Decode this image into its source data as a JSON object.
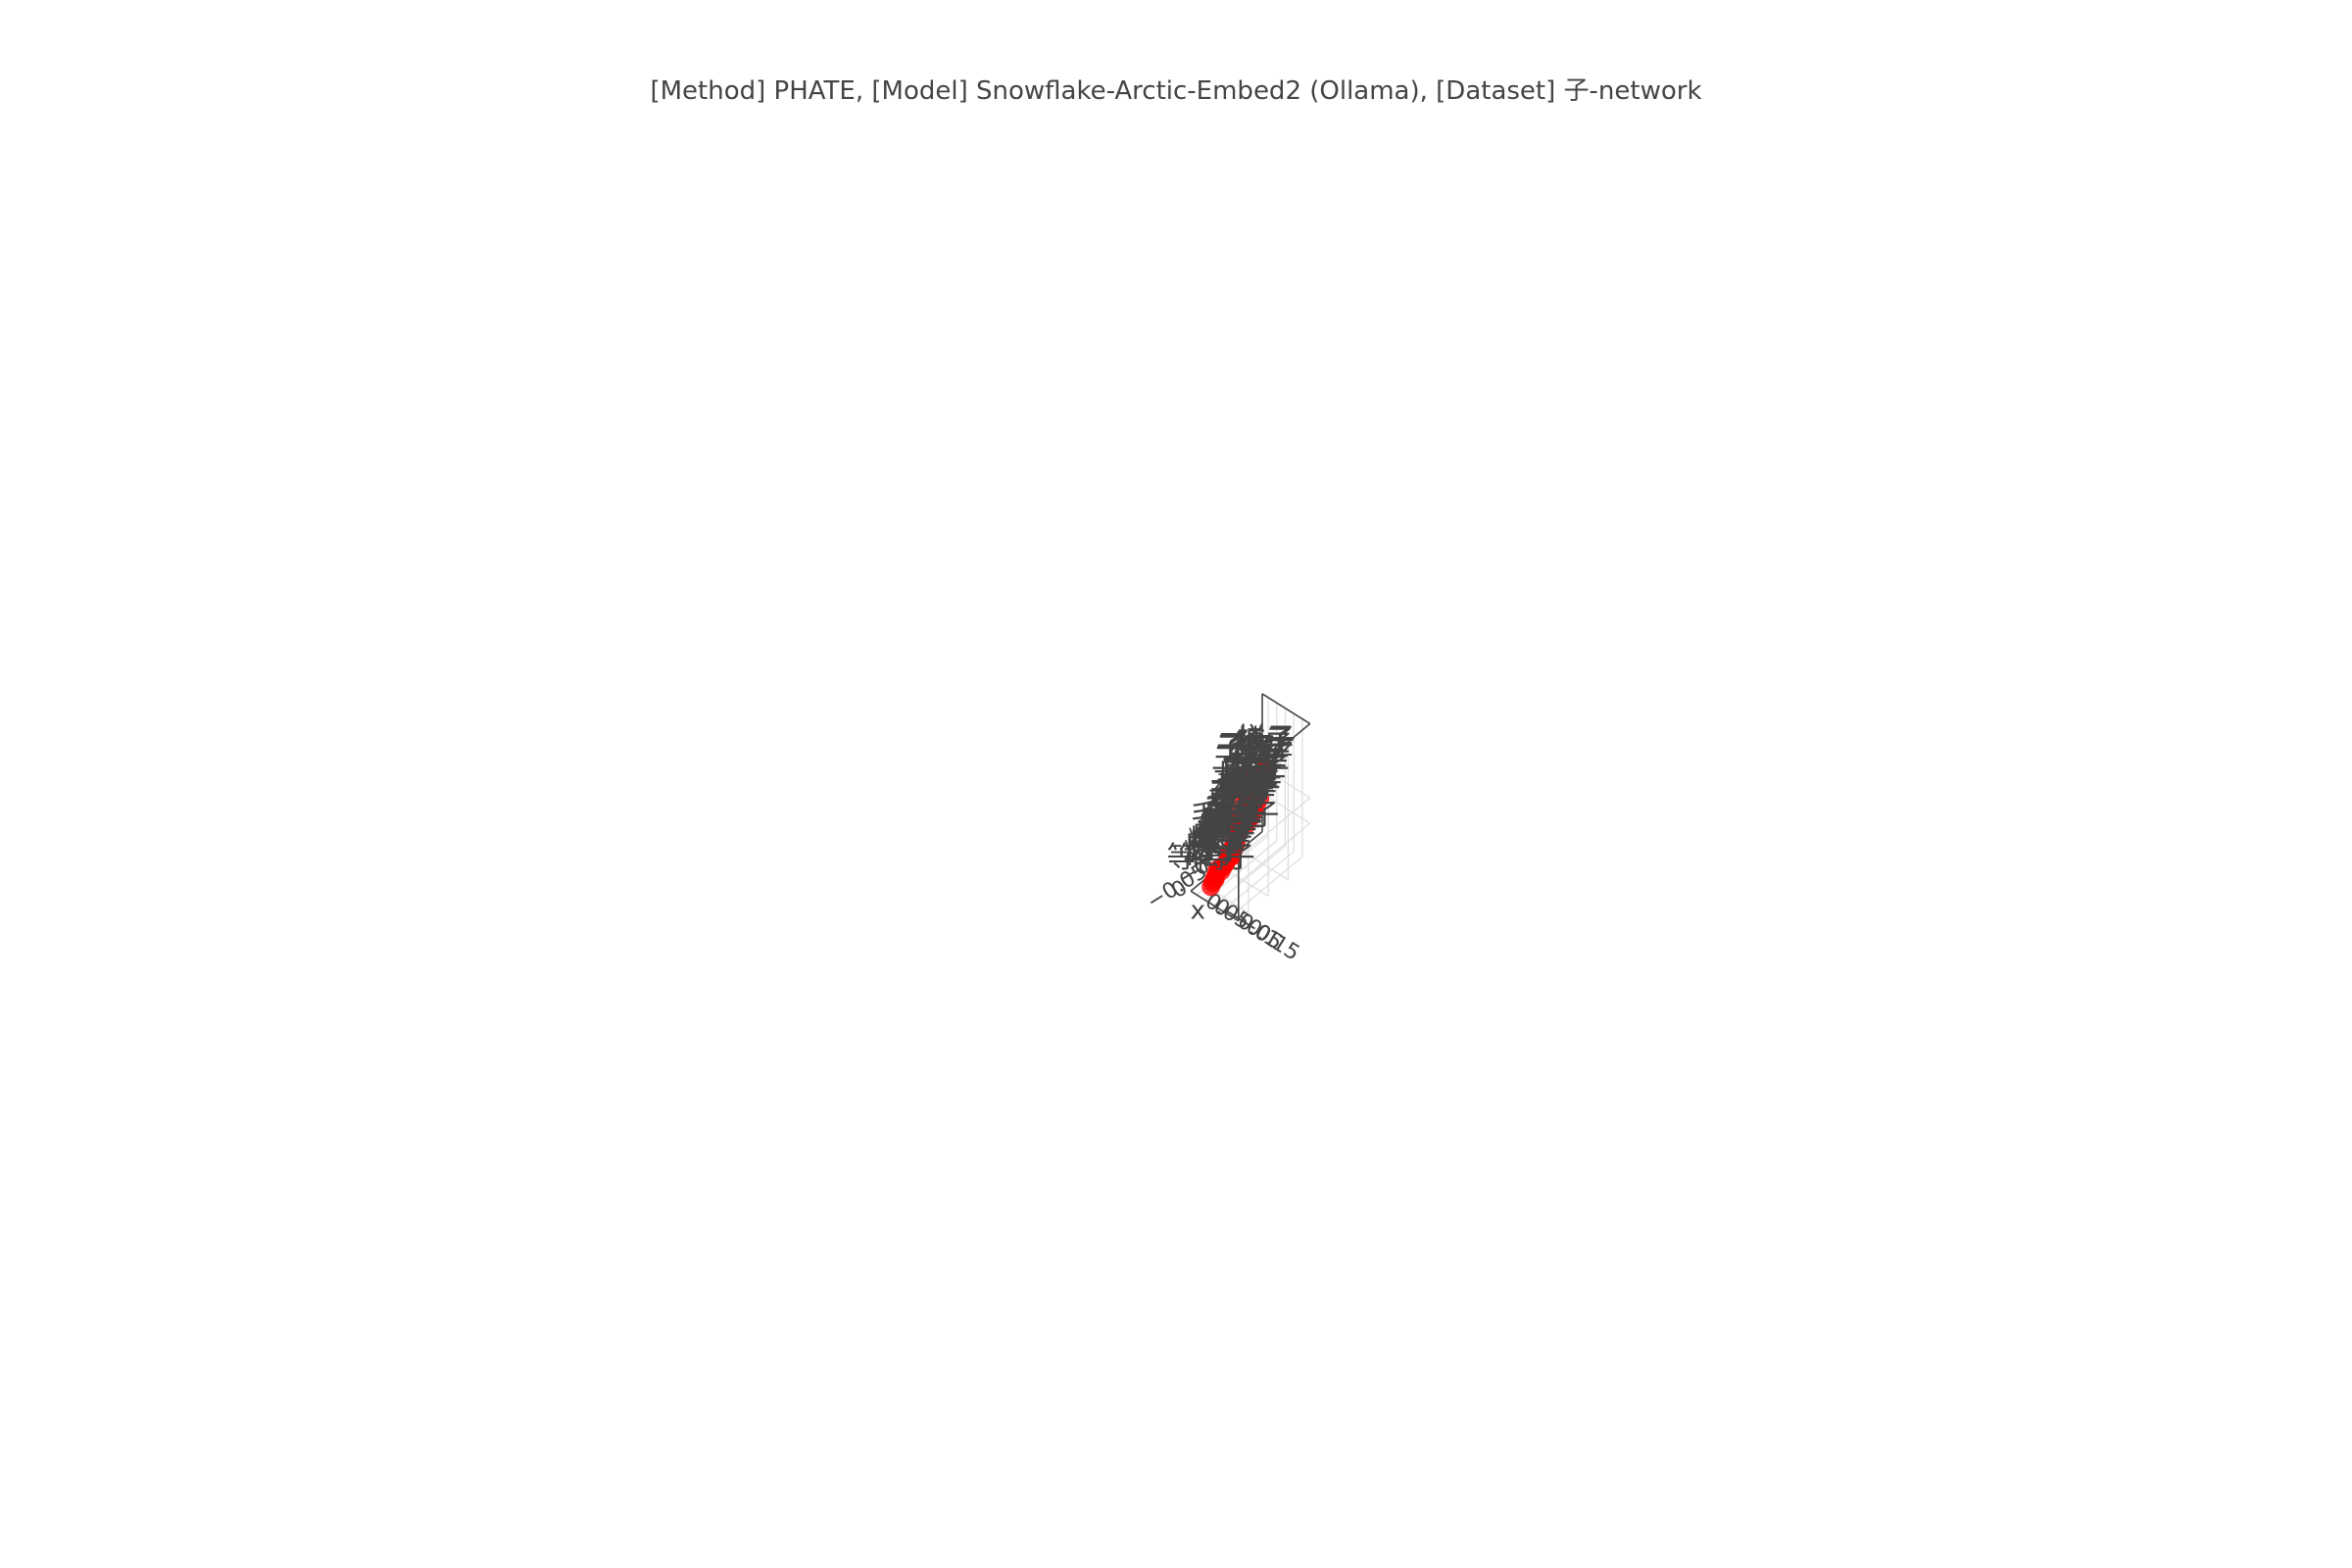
{
  "chart_data": {
    "type": "scatter3d",
    "title": "[Method] PHATE, [Model] Snowflake-Arctic-Embed2 (Ollama), [Dataset] 子-network",
    "axes": {
      "x": {
        "title": "x",
        "ticks": [
          "−0.15",
          "−0.1",
          "−0.05",
          "0",
          "0.05"
        ]
      },
      "y": {
        "title": "y",
        "ticks": [
          "−0.1",
          "−0.05",
          "0"
        ]
      },
      "z": {
        "title": "z",
        "ticks": [
          "0",
          "−0.05"
        ]
      }
    },
    "grid": true,
    "marker_color": "#ff0000",
    "text_color": "#444444",
    "points": [
      {
        "label": "子时",
        "x": -0.15,
        "y": 0.0,
        "z": 0.09
      },
      {
        "label": "子孙",
        "x": -0.145,
        "y": 0.0,
        "z": 0.06
      },
      {
        "label": "孙子",
        "x": -0.14,
        "y": 0.0,
        "z": 0.04
      },
      {
        "label": "辈子",
        "x": -0.11,
        "y": -0.03,
        "z": 0.04
      },
      {
        "label": "男子",
        "x": -0.125,
        "y": 0.0,
        "z": 0.02
      },
      {
        "label": "女子",
        "x": -0.12,
        "y": 0.0,
        "z": 0.015
      },
      {
        "label": "毛子",
        "x": -0.11,
        "y": 0.0,
        "z": 0.005
      },
      {
        "label": "虫子",
        "x": -0.16,
        "y": 0.01,
        "z": 0.03
      },
      {
        "label": "妻子",
        "x": -0.15,
        "y": 0.01,
        "z": 0.03
      },
      {
        "label": "妹子",
        "x": -0.17,
        "y": 0.02,
        "z": 0.02
      },
      {
        "label": "房子",
        "x": -0.175,
        "y": 0.03,
        "z": 0.01
      },
      {
        "label": "瘦子",
        "x": -0.15,
        "y": 0.02,
        "z": 0.0
      },
      {
        "label": "墨子",
        "x": -0.17,
        "y": 0.03,
        "z": 0.0
      },
      {
        "label": "傻子",
        "x": -0.18,
        "y": 0.04,
        "z": 0.02
      },
      {
        "label": "胖子",
        "x": -0.185,
        "y": 0.04,
        "z": 0.02
      },
      {
        "label": "甲子",
        "x": -0.05,
        "y": -0.06,
        "z": 0.02
      },
      {
        "label": "日子",
        "x": -0.06,
        "y": -0.05,
        "z": 0.01
      },
      {
        "label": "棋子",
        "x": -0.07,
        "y": -0.045,
        "z": 0.005
      },
      {
        "label": "骰子",
        "x": -0.03,
        "y": -0.1,
        "z": 0.0
      },
      {
        "label": "脖子",
        "x": -0.03,
        "y": -0.08,
        "z": -0.005
      },
      {
        "label": "鼻子",
        "x": -0.035,
        "y": -0.07,
        "z": -0.01
      },
      {
        "label": "面子",
        "x": -0.04,
        "y": -0.065,
        "z": -0.01
      },
      {
        "label": "胡子",
        "x": -0.05,
        "y": -0.06,
        "z": -0.015
      },
      {
        "label": "脑子",
        "x": -0.03,
        "y": -0.075,
        "z": -0.02
      },
      {
        "label": "嗓子",
        "x": -0.025,
        "y": -0.08,
        "z": -0.025
      },
      {
        "label": "曲子",
        "x": -0.01,
        "y": -0.1,
        "z": -0.02
      },
      {
        "label": "调子",
        "x": -0.01,
        "y": -0.09,
        "z": -0.025
      },
      {
        "label": "启子",
        "x": -0.03,
        "y": -0.065,
        "z": -0.03
      },
      {
        "label": "毛栗子",
        "x": -0.07,
        "y": -0.02,
        "z": -0.03
      },
      {
        "label": "性子",
        "x": -0.08,
        "y": 0.0,
        "z": -0.03
      },
      {
        "label": "猴子",
        "x": -0.085,
        "y": 0.005,
        "z": -0.04
      },
      {
        "label": "狮子",
        "x": -0.085,
        "y": 0.01,
        "z": -0.045
      },
      {
        "label": "燕子",
        "x": -0.075,
        "y": 0.005,
        "z": -0.05
      },
      {
        "label": "虫子",
        "x": -0.07,
        "y": 0.01,
        "z": -0.055
      },
      {
        "label": "蚊子",
        "x": -0.07,
        "y": 0.015,
        "z": -0.06
      },
      {
        "label": "椰子",
        "x": -0.02,
        "y": -0.04,
        "z": -0.06
      },
      {
        "label": "橘子",
        "x": -0.03,
        "y": -0.03,
        "z": -0.06
      },
      {
        "label": "豆子",
        "x": -0.01,
        "y": -0.04,
        "z": -0.07
      },
      {
        "label": "种子",
        "x": -0.015,
        "y": -0.035,
        "z": -0.075
      },
      {
        "label": "原子",
        "x": -0.01,
        "y": -0.01,
        "z": -0.08
      },
      {
        "label": "电子",
        "x": -0.005,
        "y": -0.005,
        "z": -0.085
      },
      {
        "label": "精子",
        "x": -0.01,
        "y": 0.0,
        "z": -0.08
      },
      {
        "label": "因子",
        "x": 0.0,
        "y": 0.0,
        "z": -0.095
      },
      {
        "label": "质子",
        "x": 0.005,
        "y": 0.0,
        "z": -0.1
      },
      {
        "label": "分子",
        "x": 0.01,
        "y": -0.005,
        "z": -0.105
      },
      {
        "label": "粒子",
        "x": 0.015,
        "y": 0.0,
        "z": -0.11
      },
      {
        "label": "等离子",
        "x": 0.025,
        "y": 0.0,
        "z": -0.12
      },
      {
        "label": "样子",
        "x": 0.05,
        "y": -0.15,
        "z": 0.01
      },
      {
        "label": "椅子",
        "x": 0.045,
        "y": -0.145,
        "z": 0.01
      },
      {
        "label": "桌子",
        "x": 0.04,
        "y": -0.14,
        "z": 0.005
      },
      {
        "label": "柜子",
        "x": 0.035,
        "y": -0.13,
        "z": 0.0
      },
      {
        "label": "箱子",
        "x": 0.03,
        "y": -0.125,
        "z": -0.005
      },
      {
        "label": "杯子",
        "x": 0.025,
        "y": -0.12,
        "z": -0.01
      },
      {
        "label": "盘子",
        "x": 0.02,
        "y": -0.115,
        "z": -0.015
      },
      {
        "label": "子午",
        "x": -0.18,
        "y": 0.0,
        "z": 0.14
      },
      {
        "label": "子夜",
        "x": -0.178,
        "y": 0.0,
        "z": 0.138
      },
      {
        "label": "子宫",
        "x": -0.176,
        "y": 0.0,
        "z": 0.136
      },
      {
        "label": "子弹",
        "x": -0.174,
        "y": 0.0,
        "z": 0.134
      }
    ]
  }
}
